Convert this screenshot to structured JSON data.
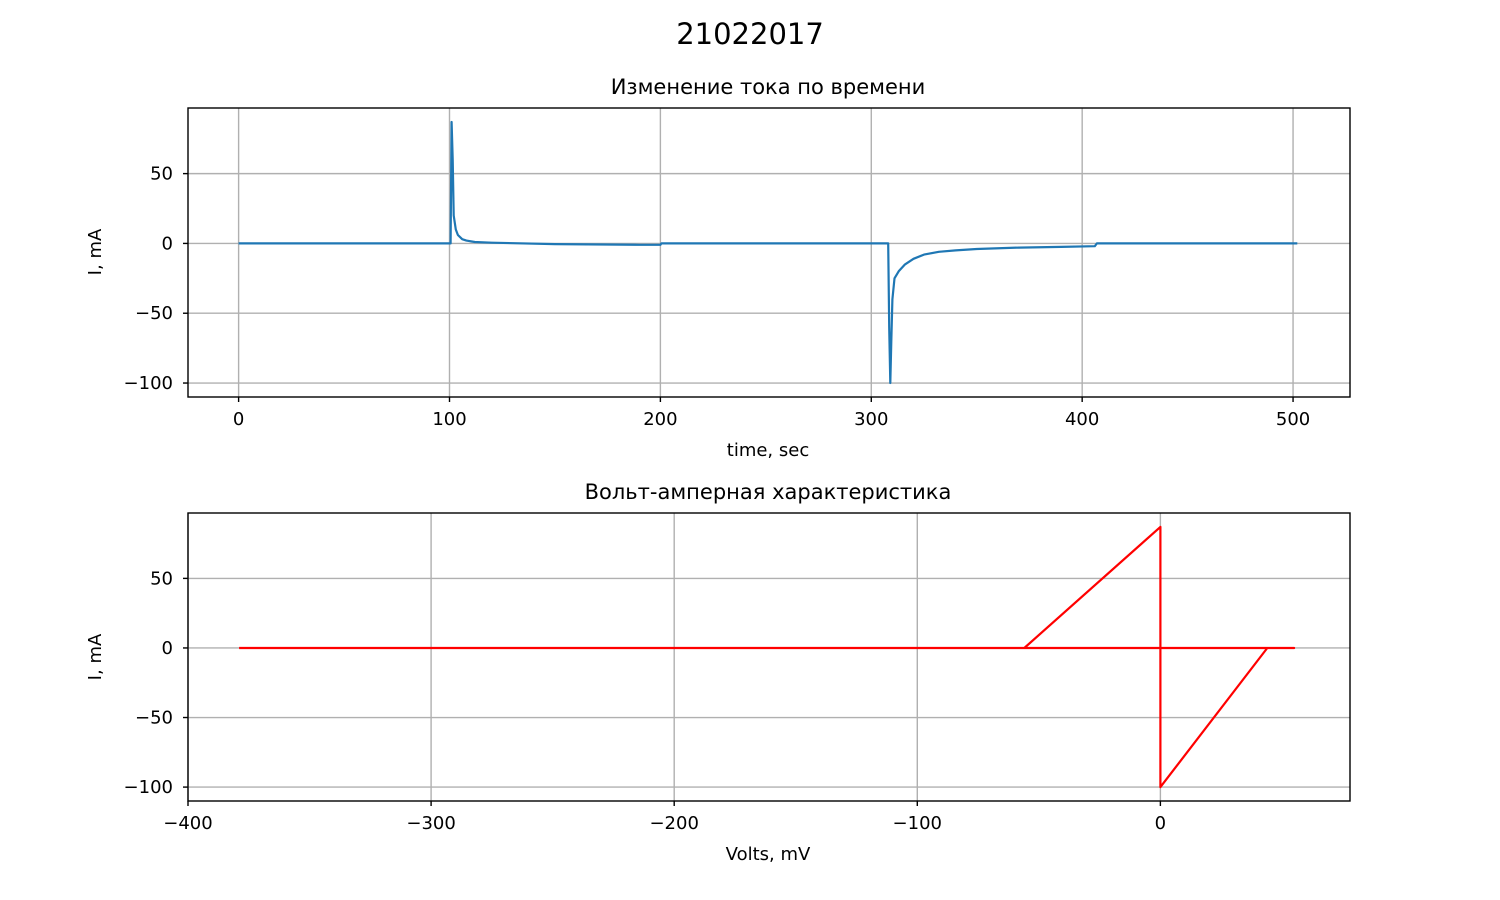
{
  "figure": {
    "suptitle": "21022017"
  },
  "chart_data": [
    {
      "type": "line",
      "title": "Изменение тока по времени",
      "xlabel": "time, sec",
      "ylabel": "I, mA",
      "xlim": [
        -24,
        527
      ],
      "ylim": [
        -110,
        97
      ],
      "xticks": [
        0,
        100,
        200,
        300,
        400,
        500
      ],
      "yticks": [
        50,
        0,
        -50,
        -100
      ],
      "xtick_labels": [
        "0",
        "100",
        "200",
        "300",
        "400",
        "500"
      ],
      "ytick_labels": [
        "50",
        "0",
        "−50",
        "−100"
      ],
      "grid": true,
      "color": "#1f77b4",
      "series": [
        {
          "x": [
            0,
            100.5,
            101,
            101.5,
            102,
            103,
            104,
            106,
            108,
            112,
            120,
            150,
            190,
            200,
            200.5,
            250,
            308,
            308.5,
            309,
            309.5,
            310,
            311,
            313,
            316,
            320,
            325,
            332,
            340,
            350,
            370,
            390,
            406,
            407,
            450,
            502
          ],
          "y": [
            0,
            0,
            87,
            60,
            20,
            10,
            6,
            3,
            2,
            1,
            0.5,
            -0.5,
            -1,
            -1,
            0,
            0,
            0,
            -60,
            -100,
            -70,
            -40,
            -25,
            -20,
            -15,
            -11,
            -8,
            -6,
            -5,
            -4,
            -3,
            -2.5,
            -2,
            0,
            0,
            0
          ]
        }
      ]
    },
    {
      "type": "line",
      "title": "Вольт-амперная характеристика",
      "xlabel": "Volts, mV",
      "ylabel": "I, mA",
      "xlim": [
        -400,
        78
      ],
      "ylim": [
        -110,
        97
      ],
      "xticks": [
        -400,
        -300,
        -200,
        -100,
        0
      ],
      "yticks": [
        50,
        0,
        -50,
        -100
      ],
      "xtick_labels": [
        "−400",
        "−300",
        "−200",
        "−100",
        "0"
      ],
      "ytick_labels": [
        "50",
        "0",
        "−50",
        "−100"
      ],
      "grid": true,
      "color": "#ff0000",
      "series": [
        {
          "x": [
            -379,
            55,
            55,
            44,
            0,
            0,
            -56,
            -56,
            55
          ],
          "y": [
            0,
            0,
            0,
            0,
            -100,
            87,
            0,
            0,
            0
          ]
        }
      ]
    }
  ]
}
